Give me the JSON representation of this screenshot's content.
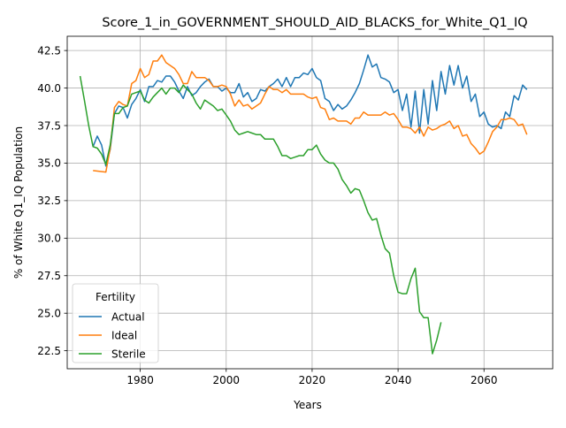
{
  "chart_data": {
    "type": "line",
    "title": "Score_1_in_GOVERNMENT_SHOULD_AID_BLACKS_for_White_Q1_IQ",
    "xlabel": "Years",
    "ylabel": "% of White Q1_IQ Population",
    "xlim": [
      1963,
      2076
    ],
    "ylim": [
      21.3,
      43.45
    ],
    "xticks": [
      1980,
      2000,
      2020,
      2040,
      2060
    ],
    "yticks": [
      22.5,
      25.0,
      27.5,
      30.0,
      32.5,
      35.0,
      37.5,
      40.0,
      42.5
    ],
    "xtick_labels": [
      "1980",
      "2000",
      "2020",
      "2040",
      "2060"
    ],
    "ytick_labels": [
      "22.5",
      "25.0",
      "27.5",
      "30.0",
      "32.5",
      "35.0",
      "37.5",
      "40.0",
      "42.5"
    ],
    "grid": true,
    "legend": {
      "title": "Fertility",
      "placement": "lower-left"
    },
    "series": [
      {
        "name": "Actual",
        "color": "#1f77b4",
        "x": [
          1969,
          1970,
          1971,
          1972,
          1973,
          1974,
          1975,
          1976,
          1977,
          1978,
          1979,
          1980,
          1981,
          1982,
          1983,
          1984,
          1985,
          1986,
          1987,
          1988,
          1989,
          1990,
          1991,
          1992,
          1993,
          1994,
          1995,
          1996,
          1997,
          1998,
          1999,
          2000,
          2001,
          2002,
          2003,
          2004,
          2005,
          2006,
          2007,
          2008,
          2009,
          2010,
          2011,
          2012,
          2013,
          2014,
          2015,
          2016,
          2017,
          2018,
          2019,
          2020,
          2021,
          2022,
          2023,
          2024,
          2025,
          2026,
          2027,
          2028,
          2029,
          2030,
          2031,
          2032,
          2033,
          2034,
          2035,
          2036,
          2037,
          2038,
          2039,
          2040,
          2041,
          2042,
          2043,
          2044,
          2045,
          2046,
          2047,
          2048,
          2049,
          2050,
          2051,
          2052,
          2053,
          2054,
          2055,
          2056,
          2057,
          2058,
          2059,
          2060,
          2061,
          2062,
          2063,
          2064,
          2065,
          2066,
          2067,
          2068,
          2069,
          2070
        ],
        "y": [
          36.1,
          36.8,
          36.2,
          34.8,
          35.9,
          38.3,
          38.8,
          38.7,
          38.0,
          38.9,
          39.3,
          39.9,
          39.1,
          40.1,
          40.1,
          40.5,
          40.4,
          40.8,
          40.8,
          40.4,
          39.8,
          39.3,
          40.1,
          39.5,
          39.7,
          40.1,
          40.4,
          40.6,
          40.1,
          40.1,
          39.8,
          40.0,
          39.7,
          39.7,
          40.3,
          39.4,
          39.7,
          39.1,
          39.3,
          39.9,
          39.8,
          40.1,
          40.3,
          40.6,
          40.1,
          40.7,
          40.1,
          40.7,
          40.7,
          41.0,
          40.9,
          41.3,
          40.7,
          40.5,
          39.3,
          39.1,
          38.5,
          38.9,
          38.6,
          38.8,
          39.2,
          39.7,
          40.3,
          41.2,
          42.2,
          41.4,
          41.6,
          40.7,
          40.6,
          40.4,
          39.7,
          39.9,
          38.5,
          39.6,
          37.4,
          39.8,
          37.0,
          39.9,
          37.6,
          40.5,
          38.5,
          41.1,
          39.6,
          41.5,
          40.2,
          41.5,
          40.0,
          40.8,
          39.1,
          39.6,
          38.1,
          38.4,
          37.6,
          37.4,
          37.5,
          37.3,
          38.4,
          38.1,
          39.5,
          39.2,
          40.2,
          39.9
        ]
      },
      {
        "name": "Ideal",
        "color": "#ff7f0e",
        "x": [
          1969,
          1972,
          1973,
          1974,
          1975,
          1976,
          1977,
          1978,
          1979,
          1980,
          1981,
          1982,
          1983,
          1984,
          1985,
          1986,
          1987,
          1988,
          1989,
          1990,
          1991,
          1992,
          1993,
          1994,
          1995,
          1996,
          1997,
          1998,
          1999,
          2000,
          2001,
          2002,
          2003,
          2004,
          2005,
          2006,
          2007,
          2008,
          2009,
          2010,
          2011,
          2012,
          2013,
          2014,
          2015,
          2016,
          2017,
          2018,
          2019,
          2020,
          2021,
          2022,
          2023,
          2024,
          2025,
          2026,
          2027,
          2028,
          2029,
          2030,
          2031,
          2032,
          2033,
          2034,
          2035,
          2036,
          2037,
          2038,
          2039,
          2040,
          2041,
          2042,
          2043,
          2044,
          2045,
          2046,
          2047,
          2048,
          2049,
          2050,
          2051,
          2052,
          2053,
          2054,
          2055,
          2056,
          2057,
          2058,
          2059,
          2060,
          2061,
          2062,
          2063,
          2064,
          2065,
          2066,
          2067,
          2068,
          2069,
          2070
        ],
        "y": [
          34.5,
          34.4,
          36.0,
          38.7,
          39.1,
          38.9,
          38.8,
          40.3,
          40.5,
          41.3,
          40.7,
          40.9,
          41.8,
          41.8,
          42.2,
          41.7,
          41.5,
          41.3,
          40.9,
          40.3,
          40.3,
          41.1,
          40.7,
          40.7,
          40.7,
          40.5,
          40.1,
          40.1,
          40.2,
          40.1,
          39.6,
          38.8,
          39.2,
          38.8,
          38.9,
          38.6,
          38.8,
          39.0,
          39.6,
          40.1,
          39.9,
          39.9,
          39.7,
          39.9,
          39.6,
          39.6,
          39.6,
          39.6,
          39.4,
          39.3,
          39.4,
          38.7,
          38.6,
          37.9,
          38.0,
          37.8,
          37.8,
          37.8,
          37.6,
          38.0,
          38.0,
          38.4,
          38.2,
          38.2,
          38.2,
          38.2,
          38.4,
          38.2,
          38.3,
          37.9,
          37.4,
          37.4,
          37.3,
          37.0,
          37.4,
          36.8,
          37.4,
          37.2,
          37.3,
          37.5,
          37.6,
          37.8,
          37.3,
          37.5,
          36.8,
          36.9,
          36.3,
          36.0,
          35.6,
          35.8,
          36.4,
          37.1,
          37.4,
          37.9,
          37.9,
          38.0,
          37.9,
          37.5,
          37.6,
          36.9
        ]
      },
      {
        "name": "Sterile",
        "color": "#2ca02c",
        "x": [
          1966,
          1967,
          1968,
          1969,
          1970,
          1971,
          1972,
          1973,
          1974,
          1975,
          1976,
          1977,
          1978,
          1979,
          1980,
          1981,
          1982,
          1983,
          1984,
          1985,
          1986,
          1987,
          1988,
          1989,
          1990,
          1991,
          1992,
          1993,
          1994,
          1995,
          1996,
          1997,
          1998,
          1999,
          2000,
          2001,
          2002,
          2003,
          2004,
          2005,
          2006,
          2007,
          2008,
          2009,
          2010,
          2011,
          2012,
          2013,
          2014,
          2015,
          2016,
          2017,
          2018,
          2019,
          2020,
          2021,
          2022,
          2023,
          2024,
          2025,
          2026,
          2027,
          2028,
          2029,
          2030,
          2031,
          2032,
          2033,
          2034,
          2035,
          2036,
          2037,
          2038,
          2039,
          2040,
          2041,
          2042,
          2043,
          2044,
          2045,
          2046,
          2047,
          2048,
          2049,
          2050
        ],
        "y": [
          40.8,
          39.2,
          37.5,
          36.1,
          36.0,
          35.6,
          34.9,
          36.2,
          38.3,
          38.3,
          38.7,
          38.8,
          39.6,
          39.7,
          39.8,
          39.2,
          39.0,
          39.4,
          39.7,
          40.0,
          39.6,
          40.0,
          40.0,
          39.7,
          40.2,
          39.9,
          39.6,
          39.0,
          38.6,
          39.2,
          39.0,
          38.8,
          38.5,
          38.6,
          38.2,
          37.8,
          37.2,
          36.9,
          37.0,
          37.1,
          37.0,
          36.9,
          36.9,
          36.6,
          36.6,
          36.6,
          36.1,
          35.5,
          35.5,
          35.3,
          35.4,
          35.5,
          35.5,
          35.9,
          35.9,
          36.2,
          35.6,
          35.2,
          35.0,
          35.0,
          34.6,
          33.9,
          33.5,
          33.0,
          33.3,
          33.2,
          32.5,
          31.7,
          31.2,
          31.3,
          30.2,
          29.3,
          29.0,
          27.5,
          26.4,
          26.3,
          26.3,
          27.3,
          28.0,
          25.1,
          24.7,
          24.7,
          22.3,
          23.2,
          24.4
        ]
      }
    ]
  }
}
